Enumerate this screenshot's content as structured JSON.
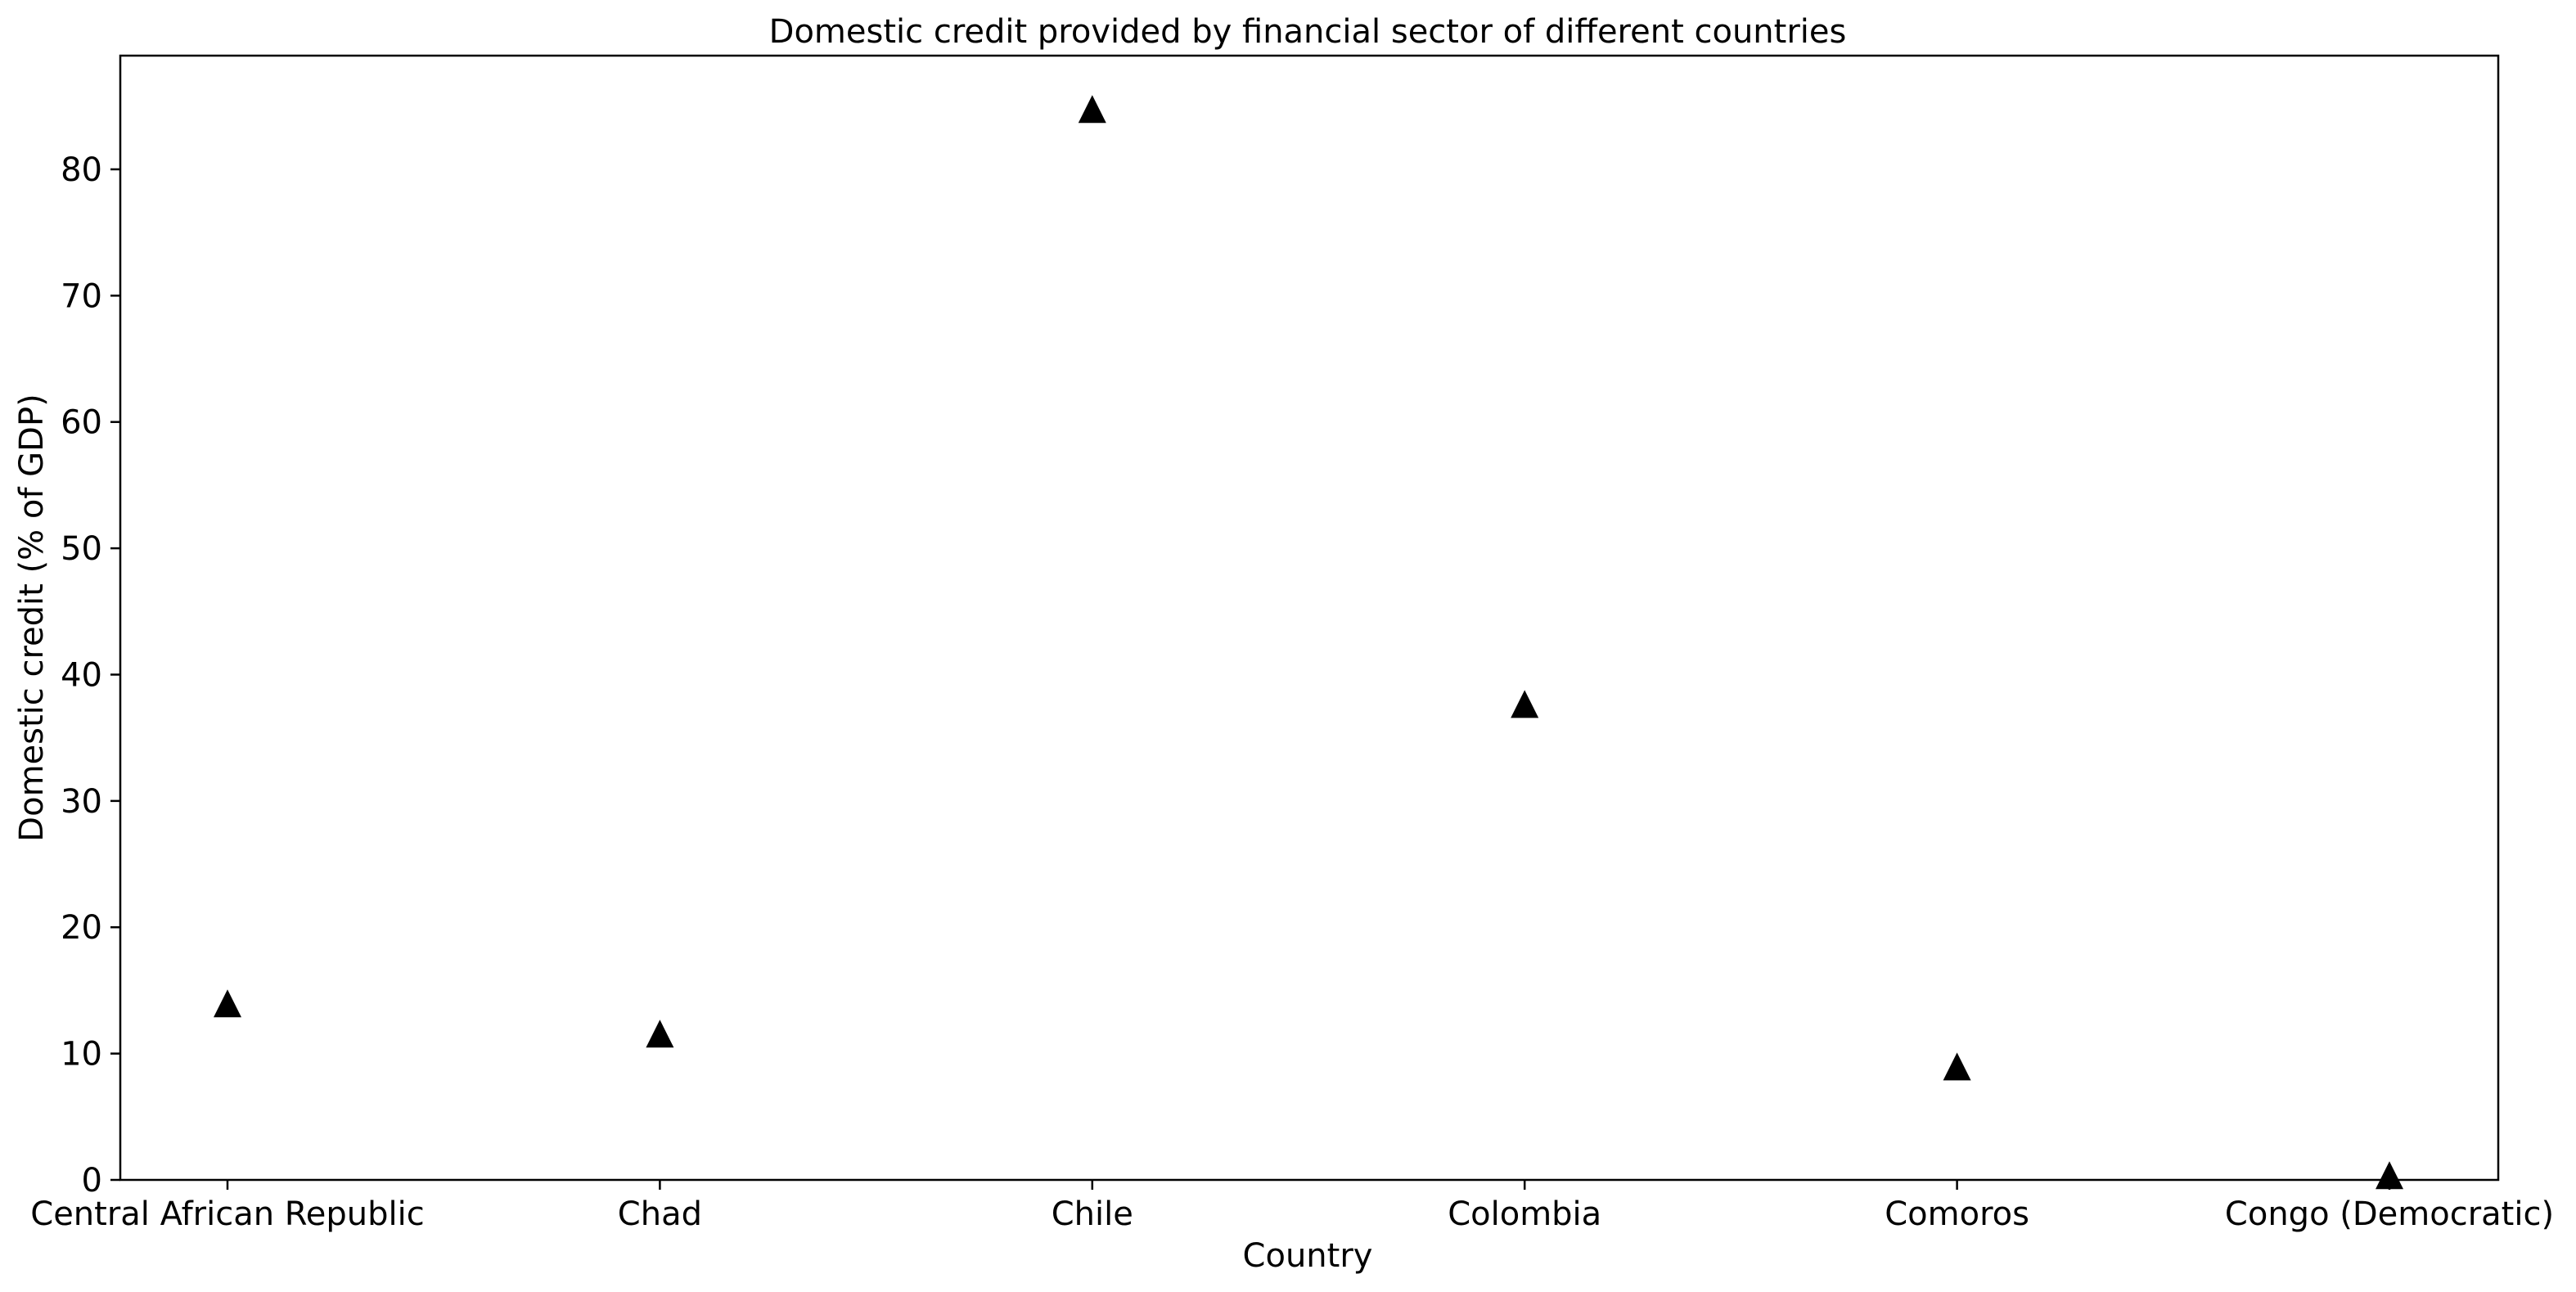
{
  "chart_data": {
    "type": "scatter",
    "title": "Domestic credit provided by financial sector of different countries",
    "xlabel": "Country",
    "ylabel": "Domestic credit (% of GDP)",
    "categories": [
      "Central African Republic",
      "Chad",
      "Chile",
      "Colombia",
      "Comoros",
      "Congo (Democratic)"
    ],
    "values": [
      13.8,
      11.4,
      84.6,
      37.5,
      8.8,
      0.2
    ],
    "ylim": [
      0,
      89
    ],
    "yticks": [
      0,
      10,
      20,
      30,
      40,
      50,
      60,
      70,
      80
    ],
    "marker": "triangle-up",
    "marker_color": "#000000",
    "grid": false,
    "legend": "none"
  }
}
